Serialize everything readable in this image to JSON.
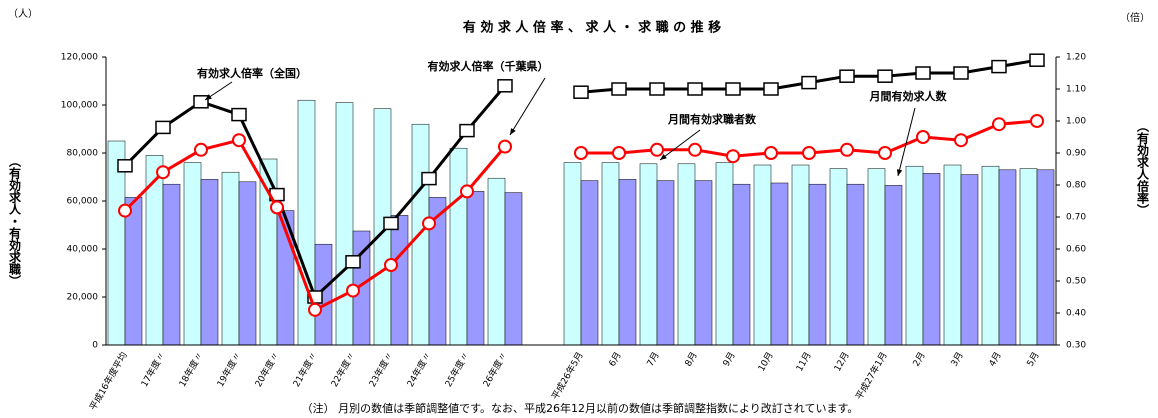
{
  "chart_data": {
    "type": "combo",
    "title": "有 効 求 人 倍 率 、 求 人 ・ 求 職 の 推 移",
    "y_unit": "（人）",
    "y2_unit": "（倍）",
    "ylabel": "（有効求人・有効求職）",
    "y2label": "（有効求人倍率）",
    "note": "（注） 月別の数値は季節調整値です。なお、平成26年12月以前の数値は季節調整指数により改訂されています。",
    "categories": [
      "平成16年度平均",
      "17年度〃",
      "18年度〃",
      "19年度〃",
      "20年度〃",
      "21年度〃",
      "22年度〃",
      "23年度〃",
      "24年度〃",
      "25年度〃",
      "26年度〃",
      null,
      "平成26年5月",
      "6月",
      "7月",
      "8月",
      "9月",
      "10月",
      "11月",
      "12月",
      "平成27年1月",
      "2月",
      "3月",
      "4月",
      "5月"
    ],
    "series": [
      {
        "name": "月間有効求職者数",
        "type": "bar",
        "color": "#ccffff",
        "values": [
          85000,
          79000,
          76000,
          72000,
          77500,
          102000,
          101000,
          98500,
          92000,
          82000,
          69500,
          null,
          76000,
          76000,
          75500,
          75500,
          76000,
          75000,
          75000,
          73500,
          73500,
          74500,
          75000,
          74500,
          73500
        ]
      },
      {
        "name": "月間有効求人数",
        "type": "bar",
        "color": "#9999ff",
        "values": [
          61500,
          67000,
          69000,
          68000,
          56000,
          42000,
          47500,
          54000,
          61500,
          64000,
          63500,
          null,
          68500,
          69000,
          68500,
          68500,
          67000,
          67500,
          67000,
          67000,
          66500,
          71500,
          71000,
          73000,
          73000
        ]
      },
      {
        "name": "有効求人倍率（全国）",
        "type": "line",
        "axis": "y2",
        "color": "#000000",
        "marker": "square",
        "values": [
          0.86,
          0.98,
          1.06,
          1.02,
          0.77,
          0.45,
          0.56,
          0.68,
          0.82,
          0.97,
          1.11,
          null,
          1.09,
          1.1,
          1.1,
          1.1,
          1.1,
          1.1,
          1.12,
          1.14,
          1.14,
          1.15,
          1.15,
          1.17,
          1.19
        ]
      },
      {
        "name": "有効求人倍率（千葉県）",
        "type": "line",
        "axis": "y2",
        "color": "#ff0000",
        "marker": "circle",
        "values": [
          0.72,
          0.84,
          0.91,
          0.94,
          0.73,
          0.41,
          0.47,
          0.55,
          0.68,
          0.78,
          0.92,
          null,
          0.9,
          0.9,
          0.91,
          0.91,
          0.89,
          0.9,
          0.9,
          0.91,
          0.9,
          0.95,
          0.94,
          0.99,
          1.0
        ]
      }
    ],
    "ylim": [
      0,
      120000
    ],
    "yticks": [
      0,
      {
        "value": 20000,
        "label": "20,000"
      },
      {
        "value": 40000,
        "label": "40,000"
      },
      {
        "value": 60000,
        "label": "60,000"
      },
      {
        "value": 80000,
        "label": "80,000"
      },
      {
        "value": 100000,
        "label": "100,000"
      },
      {
        "value": 120000,
        "label": "120,000"
      }
    ],
    "y2lim": [
      0.3,
      1.2
    ],
    "y2ticks": [
      {
        "value": 0.3,
        "label": "0.30"
      },
      {
        "value": 0.4,
        "label": "0.40"
      },
      {
        "value": 0.5,
        "label": "0.50"
      },
      {
        "value": 0.6,
        "label": "0.60"
      },
      {
        "value": 0.7,
        "label": "0.70"
      },
      {
        "value": 0.8,
        "label": "0.80"
      },
      {
        "value": 0.9,
        "label": "0.90"
      },
      {
        "value": 1.0,
        "label": "1.00"
      },
      {
        "value": 1.1,
        "label": "1.10"
      },
      {
        "value": 1.2,
        "label": "1.20"
      }
    ],
    "grid": false
  }
}
